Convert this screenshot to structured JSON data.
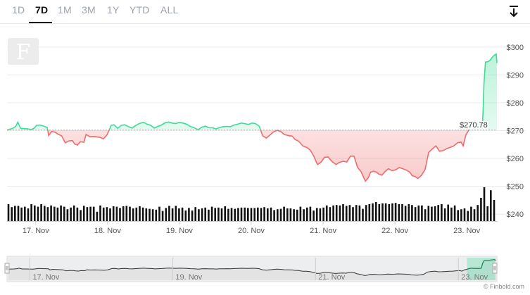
{
  "toolbar": {
    "tabs": [
      "1D",
      "7D",
      "1M",
      "3M",
      "1Y",
      "YTD",
      "ALL"
    ],
    "active_tab": "7D",
    "download_icon": "download-arrow-icon"
  },
  "watermark_icon": "finbold-f-logo",
  "price_label": "$270.78",
  "credit": "© Finbold.com",
  "colors": {
    "up": "#3ddc97",
    "down": "#f06b6b",
    "volume": "#111111",
    "grid": "#e8ebef"
  },
  "chart_data": {
    "type": "line",
    "title": "",
    "xlabel": "",
    "ylabel": "",
    "y_ticks": [
      "$300",
      "$290",
      "$280",
      "$270",
      "$260",
      "$250",
      "$240"
    ],
    "ylim": [
      238.5,
      303
    ],
    "x_ticks": [
      "17. Nov",
      "18. Nov",
      "19. Nov",
      "20. Nov",
      "21. Nov",
      "22. Nov",
      "23. Nov"
    ],
    "xlim": [
      0,
      6.82
    ],
    "baseline": 270.2,
    "grid": true,
    "price": [
      [
        0.0,
        270.2
      ],
      [
        0.08,
        270.8
      ],
      [
        0.12,
        271.5
      ],
      [
        0.15,
        273.0
      ],
      [
        0.19,
        270.8
      ],
      [
        0.24,
        270.7
      ],
      [
        0.29,
        270.6
      ],
      [
        0.34,
        270.4
      ],
      [
        0.38,
        270.9
      ],
      [
        0.41,
        271.9
      ],
      [
        0.46,
        272.0
      ],
      [
        0.51,
        271.6
      ],
      [
        0.56,
        271.1
      ],
      [
        0.58,
        268.2
      ],
      [
        0.62,
        269.7
      ],
      [
        0.67,
        269.4
      ],
      [
        0.71,
        268.7
      ],
      [
        0.76,
        268.1
      ],
      [
        0.81,
        265.6
      ],
      [
        0.86,
        266.3
      ],
      [
        0.91,
        266.4
      ],
      [
        0.94,
        265.2
      ],
      [
        0.98,
        264.8
      ],
      [
        1.02,
        266.0
      ],
      [
        1.07,
        265.8
      ],
      [
        1.1,
        268.6
      ],
      [
        1.15,
        267.8
      ],
      [
        1.21,
        267.9
      ],
      [
        1.26,
        267.7
      ],
      [
        1.3,
        267.5
      ],
      [
        1.34,
        267.0
      ],
      [
        1.39,
        268.4
      ],
      [
        1.45,
        271.9
      ],
      [
        1.49,
        272.1
      ],
      [
        1.54,
        270.8
      ],
      [
        1.59,
        271.9
      ],
      [
        1.64,
        272.1
      ],
      [
        1.69,
        271.4
      ],
      [
        1.74,
        270.9
      ],
      [
        1.79,
        271.8
      ],
      [
        1.84,
        272.5
      ],
      [
        1.9,
        273.0
      ],
      [
        1.95,
        272.3
      ],
      [
        2.0,
        271.9
      ],
      [
        2.05,
        270.9
      ],
      [
        2.1,
        271.5
      ],
      [
        2.15,
        272.0
      ],
      [
        2.2,
        272.8
      ],
      [
        2.25,
        273.1
      ],
      [
        2.3,
        272.7
      ],
      [
        2.35,
        272.5
      ],
      [
        2.4,
        273.0
      ],
      [
        2.45,
        272.7
      ],
      [
        2.5,
        272.3
      ],
      [
        2.55,
        271.5
      ],
      [
        2.6,
        271.1
      ],
      [
        2.66,
        270.3
      ],
      [
        2.71,
        271.2
      ],
      [
        2.76,
        271.6
      ],
      [
        2.81,
        271.0
      ],
      [
        2.86,
        271.0
      ],
      [
        2.91,
        270.6
      ],
      [
        2.96,
        271.1
      ],
      [
        3.01,
        271.4
      ],
      [
        3.06,
        271.5
      ],
      [
        3.11,
        271.4
      ],
      [
        3.16,
        272.0
      ],
      [
        3.21,
        272.3
      ],
      [
        3.26,
        272.7
      ],
      [
        3.31,
        272.5
      ],
      [
        3.36,
        272.2
      ],
      [
        3.41,
        272.7
      ],
      [
        3.46,
        272.5
      ],
      [
        3.51,
        271.6
      ],
      [
        3.56,
        268.1
      ],
      [
        3.61,
        267.3
      ],
      [
        3.66,
        268.4
      ],
      [
        3.71,
        269.5
      ],
      [
        3.76,
        270.1
      ],
      [
        3.81,
        269.7
      ],
      [
        3.86,
        268.6
      ],
      [
        3.92,
        268.2
      ],
      [
        3.97,
        268.0
      ],
      [
        4.01,
        266.8
      ],
      [
        4.06,
        266.2
      ],
      [
        4.12,
        264.4
      ],
      [
        4.17,
        264.0
      ],
      [
        4.22,
        263.0
      ],
      [
        4.27,
        260.8
      ],
      [
        4.32,
        257.8
      ],
      [
        4.37,
        258.6
      ],
      [
        4.42,
        260.4
      ],
      [
        4.47,
        260.5
      ],
      [
        4.52,
        259.0
      ],
      [
        4.58,
        257.8
      ],
      [
        4.63,
        258.6
      ],
      [
        4.68,
        259.0
      ],
      [
        4.73,
        258.7
      ],
      [
        4.78,
        260.8
      ],
      [
        4.83,
        260.8
      ],
      [
        4.88,
        256.8
      ],
      [
        4.93,
        255.2
      ],
      [
        4.96,
        253.4
      ],
      [
        4.99,
        251.8
      ],
      [
        5.03,
        253.1
      ],
      [
        5.06,
        255.0
      ],
      [
        5.1,
        255.4
      ],
      [
        5.14,
        255.1
      ],
      [
        5.18,
        254.3
      ],
      [
        5.22,
        254.0
      ],
      [
        5.26,
        255.2
      ],
      [
        5.31,
        256.3
      ],
      [
        5.36,
        255.6
      ],
      [
        5.41,
        255.9
      ],
      [
        5.46,
        256.7
      ],
      [
        5.51,
        256.3
      ],
      [
        5.56,
        255.8
      ],
      [
        5.61,
        255.0
      ],
      [
        5.64,
        253.8
      ],
      [
        5.68,
        253.5
      ],
      [
        5.72,
        252.8
      ],
      [
        5.77,
        253.9
      ],
      [
        5.82,
        256.0
      ],
      [
        5.87,
        262.1
      ],
      [
        5.92,
        263.4
      ],
      [
        5.97,
        264.5
      ],
      [
        6.02,
        262.6
      ],
      [
        6.07,
        262.8
      ],
      [
        6.12,
        263.5
      ],
      [
        6.17,
        264.0
      ],
      [
        6.22,
        264.5
      ],
      [
        6.27,
        265.6
      ],
      [
        6.32,
        265.9
      ],
      [
        6.35,
        264.5
      ],
      [
        6.39,
        268.6
      ],
      [
        6.42,
        269.8
      ],
      [
        6.45,
        271.8
      ],
      [
        6.48,
        273.0
      ],
      [
        6.52,
        272.5
      ],
      [
        6.56,
        272.3
      ],
      [
        6.59,
        272.2
      ],
      [
        6.62,
        273.0
      ],
      [
        6.63,
        279.0
      ],
      [
        6.64,
        287.0
      ],
      [
        6.66,
        294.6
      ],
      [
        6.7,
        294.8
      ],
      [
        6.73,
        295.4
      ],
      [
        6.76,
        296.5
      ],
      [
        6.79,
        297.2
      ],
      [
        6.81,
        297.5
      ],
      [
        6.82,
        294.3
      ]
    ],
    "volume": [
      40,
      33,
      36,
      36,
      32,
      34,
      30,
      40,
      37,
      34,
      40,
      36,
      33,
      37,
      34,
      32,
      37,
      34,
      28,
      32,
      37,
      32,
      26,
      36,
      33,
      34,
      34,
      22,
      37,
      32,
      33,
      30,
      35,
      34,
      31,
      35,
      36,
      34,
      30,
      32,
      35,
      32,
      30,
      29,
      28,
      27,
      34,
      24,
      31,
      36,
      30,
      36,
      30,
      32,
      25,
      31,
      25,
      33,
      28,
      30,
      32,
      27,
      34,
      31,
      32,
      30,
      35,
      29,
      31,
      29,
      31,
      32,
      32,
      31,
      31,
      31,
      32,
      31,
      33,
      30,
      32,
      26,
      28,
      29,
      34,
      30,
      30,
      28,
      27,
      34,
      28,
      32,
      34,
      25,
      31,
      30,
      32,
      37,
      33,
      37,
      38,
      37,
      40,
      36,
      38,
      33,
      38,
      37,
      29,
      38,
      40,
      42,
      45,
      40,
      42,
      42,
      40,
      42,
      43,
      40,
      40,
      36,
      40,
      38,
      33,
      37,
      37,
      28,
      36,
      34,
      35,
      38,
      40,
      30,
      39,
      32,
      37,
      26,
      28,
      30,
      24,
      34,
      28,
      38,
      55,
      80,
      35,
      73,
      50
    ]
  },
  "navigator": {
    "x_ticks": [
      "17. Nov",
      "19. Nov",
      "21. Nov",
      "23. Nov"
    ]
  }
}
